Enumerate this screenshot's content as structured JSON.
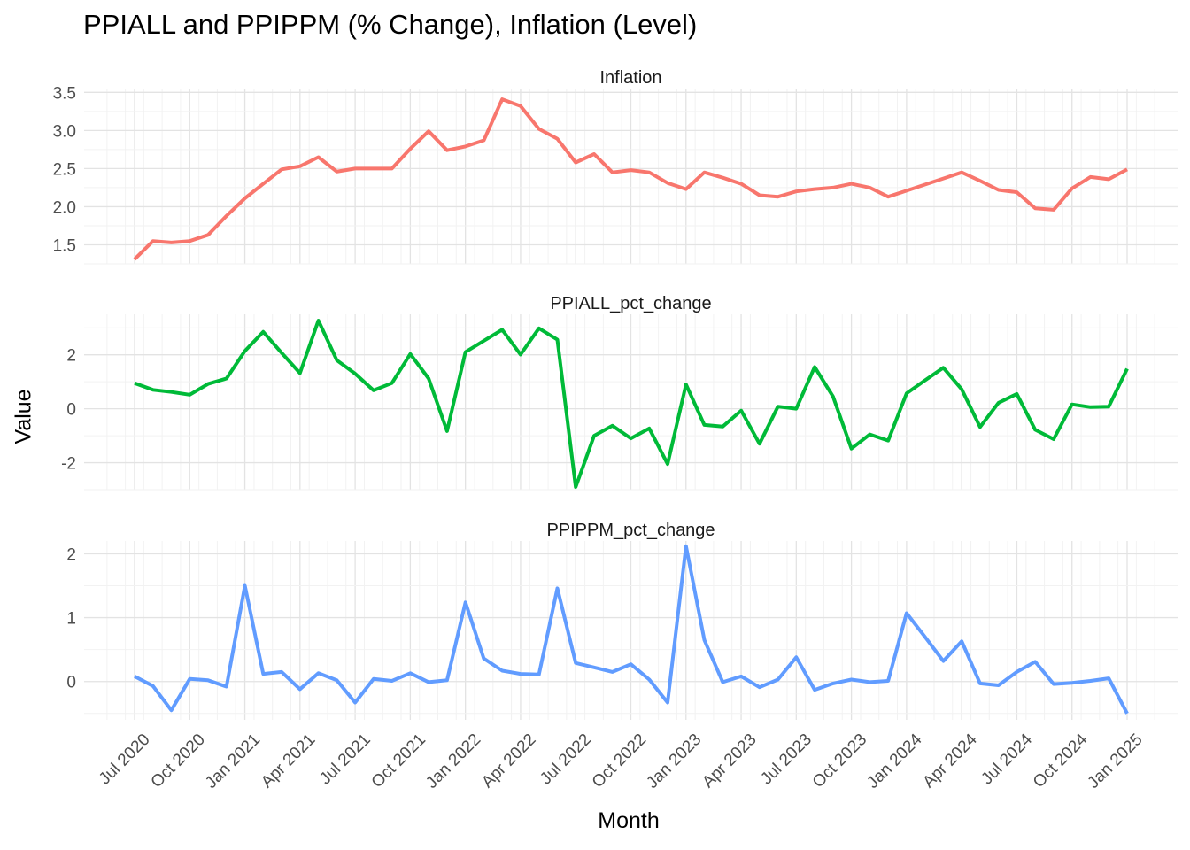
{
  "chart": {
    "title": "PPIALL and PPIPPM (% Change), Inflation (Level)",
    "xlabel": "Month",
    "ylabel": "Value"
  },
  "chart_data": {
    "type": "line",
    "layout": "faceted-vertical",
    "x_tick_labels": [
      "Jul 2020",
      "Oct 2020",
      "Jan 2021",
      "Apr 2021",
      "Jul 2021",
      "Oct 2021",
      "Jan 2022",
      "Apr 2022",
      "Jul 2022",
      "Oct 2022",
      "Jan 2023",
      "Apr 2023",
      "Jul 2023",
      "Oct 2023",
      "Jan 2024",
      "Apr 2024",
      "Jul 2024",
      "Oct 2024",
      "Jan 2025"
    ],
    "x": [
      "2020-07",
      "2020-08",
      "2020-09",
      "2020-10",
      "2020-11",
      "2020-12",
      "2021-01",
      "2021-02",
      "2021-03",
      "2021-04",
      "2021-05",
      "2021-06",
      "2021-07",
      "2021-08",
      "2021-09",
      "2021-10",
      "2021-11",
      "2021-12",
      "2022-01",
      "2022-02",
      "2022-03",
      "2022-04",
      "2022-05",
      "2022-06",
      "2022-07",
      "2022-08",
      "2022-09",
      "2022-10",
      "2022-11",
      "2022-12",
      "2023-01",
      "2023-02",
      "2023-03",
      "2023-04",
      "2023-05",
      "2023-06",
      "2023-07",
      "2023-08",
      "2023-09",
      "2023-10",
      "2023-11",
      "2023-12",
      "2024-01",
      "2024-02",
      "2024-03",
      "2024-04",
      "2024-05",
      "2024-06",
      "2024-07",
      "2024-08",
      "2024-09",
      "2024-10",
      "2024-11",
      "2024-12",
      "2025-01"
    ],
    "grid": true,
    "legend": "none",
    "series": [
      {
        "name": "Inflation",
        "color": "#F8766D",
        "ylim": [
          1.25,
          3.55
        ],
        "yticks": [
          1.5,
          2.0,
          2.5,
          3.0,
          3.5
        ],
        "ytick_labels": [
          "1.5",
          "2.0",
          "2.5",
          "3.0",
          "3.5"
        ],
        "values": [
          1.31,
          1.55,
          1.53,
          1.55,
          1.63,
          1.88,
          2.11,
          2.3,
          2.49,
          2.53,
          2.65,
          2.46,
          2.5,
          2.5,
          2.5,
          2.76,
          2.99,
          2.74,
          2.79,
          2.87,
          3.41,
          3.32,
          3.02,
          2.89,
          2.58,
          2.69,
          2.45,
          2.48,
          2.45,
          2.31,
          2.23,
          2.45,
          2.38,
          2.3,
          2.15,
          2.13,
          2.2,
          2.23,
          2.25,
          2.3,
          2.25,
          2.13,
          2.21,
          2.29,
          2.37,
          2.45,
          2.34,
          2.22,
          2.19,
          1.98,
          1.96,
          2.24,
          2.39,
          2.36,
          2.49
        ]
      },
      {
        "name": "PPIALL_pct_change",
        "color": "#00BA38",
        "ylim": [
          -3.0,
          3.5
        ],
        "yticks": [
          -2,
          0,
          2
        ],
        "ytick_labels": [
          "-2",
          "0",
          "2"
        ],
        "values": [
          0.95,
          0.7,
          0.62,
          0.52,
          0.92,
          1.12,
          2.14,
          2.85,
          2.07,
          1.32,
          3.27,
          1.8,
          1.3,
          0.68,
          0.95,
          2.03,
          1.12,
          -0.83,
          2.1,
          2.52,
          2.93,
          2.01,
          2.98,
          2.56,
          -2.9,
          -1.0,
          -0.63,
          -1.1,
          -0.73,
          -2.05,
          0.9,
          -0.6,
          -0.66,
          -0.07,
          -1.3,
          0.08,
          0.0,
          1.55,
          0.45,
          -1.48,
          -0.95,
          -1.18,
          0.57,
          1.05,
          1.52,
          0.72,
          -0.68,
          0.22,
          0.55,
          -0.78,
          -1.13,
          0.16,
          0.06,
          0.08,
          1.48
        ]
      },
      {
        "name": "PPIPPM_pct_change",
        "color": "#619CFF",
        "ylim": [
          -0.6,
          2.2
        ],
        "yticks": [
          0,
          1,
          2
        ],
        "ytick_labels": [
          "0",
          "1",
          "2"
        ],
        "values": [
          0.08,
          -0.07,
          -0.45,
          0.04,
          0.02,
          -0.08,
          1.5,
          0.12,
          0.15,
          -0.12,
          0.13,
          0.02,
          -0.33,
          0.04,
          0.01,
          0.13,
          -0.01,
          0.02,
          1.24,
          0.36,
          0.17,
          0.12,
          0.11,
          1.46,
          0.29,
          0.22,
          0.15,
          0.27,
          0.03,
          -0.33,
          2.12,
          0.65,
          -0.01,
          0.08,
          -0.09,
          0.03,
          0.38,
          -0.13,
          -0.03,
          0.03,
          -0.01,
          0.01,
          1.07,
          0.7,
          0.32,
          0.63,
          -0.03,
          -0.06,
          0.15,
          0.31,
          -0.04,
          -0.02,
          0.01,
          0.05,
          -0.5
        ]
      }
    ]
  }
}
